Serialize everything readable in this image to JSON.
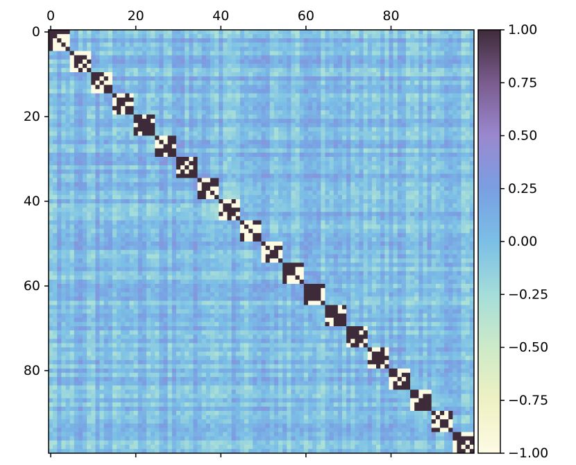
{
  "chart_data": {
    "type": "heatmap",
    "title": "",
    "xlabel": "",
    "ylabel": "",
    "n_rows": 100,
    "n_cols": 100,
    "x_axis_position": "top",
    "x_ticks": [
      0,
      20,
      40,
      60,
      80
    ],
    "x_tick_labels": [
      "0",
      "20",
      "40",
      "60",
      "80"
    ],
    "y_ticks": [
      0,
      20,
      40,
      60,
      80
    ],
    "y_tick_labels": [
      "0",
      "20",
      "40",
      "60",
      "80"
    ],
    "colorbar": {
      "position": "right",
      "vmin": -1.0,
      "vmax": 1.0,
      "ticks": [
        1.0,
        0.75,
        0.5,
        0.25,
        0.0,
        -0.25,
        -0.5,
        -0.75,
        -1.0
      ],
      "tick_labels": [
        "1.00",
        "0.75",
        "0.50",
        "0.25",
        "0.00",
        "−0.25",
        "−0.50",
        "−0.75",
        "−1.00"
      ],
      "colormap_stops": [
        {
          "value": -1.0,
          "color": "#fdfbe4"
        },
        {
          "value": -0.75,
          "color": "#eef1c3"
        },
        {
          "value": -0.5,
          "color": "#cdeac8"
        },
        {
          "value": -0.25,
          "color": "#a5ddd9"
        },
        {
          "value": 0.0,
          "color": "#7bbfe6"
        },
        {
          "value": 0.25,
          "color": "#7a9fe2"
        },
        {
          "value": 0.5,
          "color": "#9a88cf"
        },
        {
          "value": 0.75,
          "color": "#7a5c8e"
        },
        {
          "value": 1.0,
          "color": "#3e2b39"
        }
      ]
    },
    "diagonal_blocks": [
      {
        "start": 0,
        "size": 5
      },
      {
        "start": 5,
        "size": 5
      },
      {
        "start": 10,
        "size": 5
      },
      {
        "start": 15,
        "size": 5
      },
      {
        "start": 20,
        "size": 5
      },
      {
        "start": 25,
        "size": 5
      },
      {
        "start": 30,
        "size": 5
      },
      {
        "start": 35,
        "size": 5
      },
      {
        "start": 40,
        "size": 5
      },
      {
        "start": 45,
        "size": 5
      },
      {
        "start": 50,
        "size": 5
      },
      {
        "start": 55,
        "size": 5
      },
      {
        "start": 60,
        "size": 5
      },
      {
        "start": 65,
        "size": 5
      },
      {
        "start": 70,
        "size": 5
      },
      {
        "start": 75,
        "size": 5
      },
      {
        "start": 80,
        "size": 5
      },
      {
        "start": 85,
        "size": 5
      },
      {
        "start": 90,
        "size": 5
      },
      {
        "start": 95,
        "size": 5
      }
    ],
    "diagonal_value": 1.0,
    "within_block_values": [
      -1.0,
      1.0
    ],
    "off_block_value_range": [
      -0.3,
      0.35
    ],
    "grid": false
  }
}
